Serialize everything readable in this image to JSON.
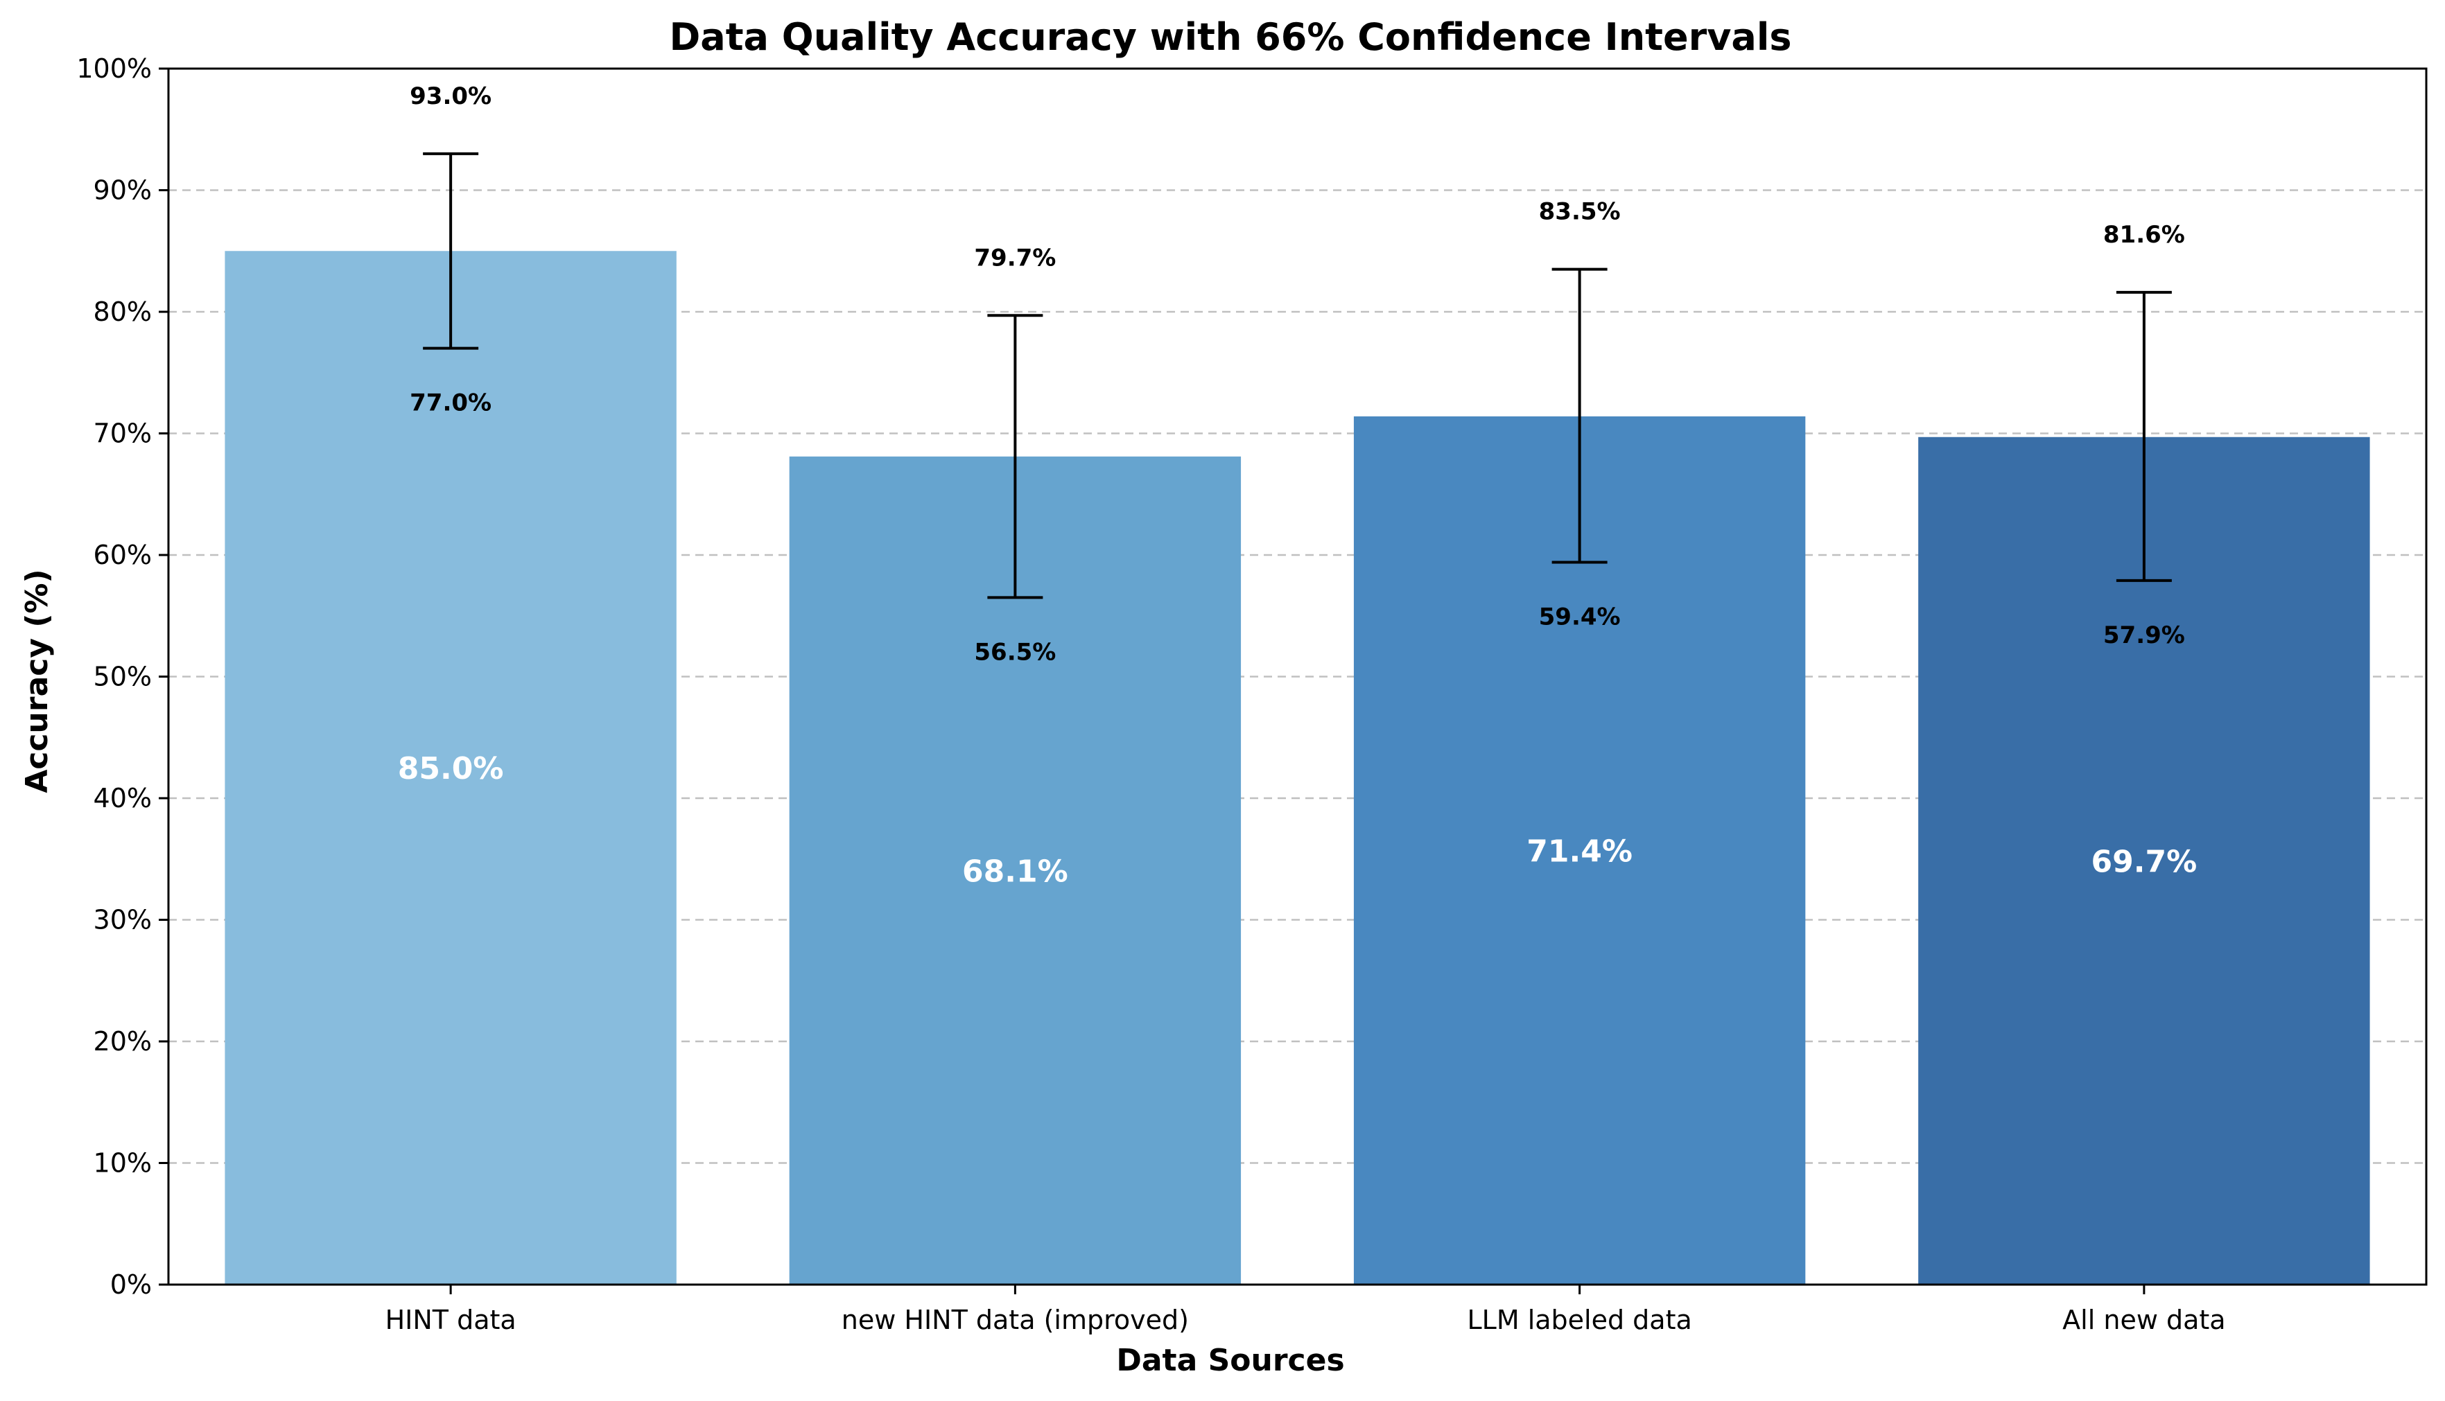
{
  "chart_data": {
    "type": "bar",
    "title": "Data Quality Accuracy with 66% Confidence Intervals",
    "xlabel": "Data Sources",
    "ylabel": "Accuracy (%)",
    "categories": [
      "HINT data",
      "new HINT data (improved)",
      "LLM labeled data",
      "All new data"
    ],
    "values": [
      85.0,
      68.1,
      71.4,
      69.7
    ],
    "value_labels": [
      "85.0%",
      "68.1%",
      "71.4%",
      "69.7%"
    ],
    "ci_lower": [
      77.0,
      56.5,
      59.4,
      57.9
    ],
    "ci_upper": [
      93.0,
      79.7,
      83.5,
      81.6
    ],
    "ci_lower_labels": [
      "77.0%",
      "56.5%",
      "59.4%",
      "57.9%"
    ],
    "ci_upper_labels": [
      "93.0%",
      "79.7%",
      "83.5%",
      "81.6%"
    ],
    "colors": [
      "#88bcdd",
      "#66a4cf",
      "#4988c0",
      "#396ea7"
    ],
    "ylim": [
      0,
      100
    ],
    "yticks": [
      0,
      10,
      20,
      30,
      40,
      50,
      60,
      70,
      80,
      90,
      100
    ],
    "ytick_labels": [
      "0%",
      "10%",
      "20%",
      "30%",
      "40%",
      "50%",
      "60%",
      "70%",
      "80%",
      "90%",
      "100%"
    ],
    "grid": "y-dashed",
    "legend": "none"
  }
}
